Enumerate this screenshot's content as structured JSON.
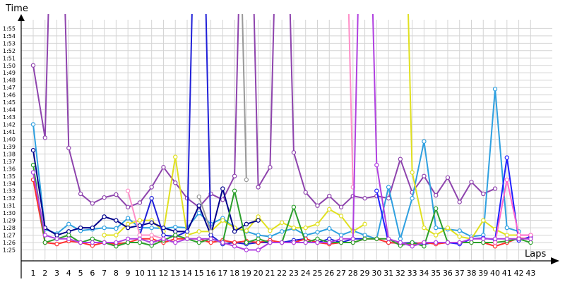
{
  "chart_data": {
    "type": "line",
    "ylabel": "Time",
    "xlabel": "Laps",
    "x_ticks": [
      1,
      2,
      3,
      4,
      5,
      6,
      7,
      8,
      9,
      10,
      11,
      12,
      13,
      14,
      15,
      16,
      17,
      18,
      19,
      20,
      21,
      22,
      23,
      24,
      25,
      26,
      27,
      28,
      29,
      30,
      31,
      32,
      33,
      34,
      35,
      36,
      37,
      38,
      39,
      40,
      41,
      42,
      43
    ],
    "y_ticks": [
      "1:25",
      "1:26",
      "1:27",
      "1:28",
      "1:29",
      "1:30",
      "1:31",
      "1:32",
      "1:33",
      "1:34",
      "1:35",
      "1:36",
      "1:37",
      "1:38",
      "1:39",
      "1:40",
      "1:41",
      "1:42",
      "1:43",
      "1:44",
      "1:45",
      "1:46",
      "1:47",
      "1:48",
      "1:49",
      "1:50",
      "1:51",
      "1:52",
      "1:53",
      "1:54",
      "1:55"
    ],
    "y_range_seconds": [
      84.3,
      117
    ],
    "x_range": [
      0.4,
      43.6
    ],
    "grid": true,
    "legend": "none",
    "series": [
      {
        "color": "#8e44ad",
        "values": [
          110.0,
          100.2,
          160,
          98.8,
          92.6,
          91.3,
          92.1,
          92.5,
          90.8,
          91.4,
          93.5,
          96.2,
          94.1,
          92.0,
          90.8,
          92.6,
          91.8,
          95.0,
          160,
          93.5,
          96.2,
          160,
          98.2,
          92.8,
          91.0,
          92.3,
          90.8,
          92.3,
          92.0,
          92.3,
          92.0,
          97.3,
          92.8,
          95.0,
          92.4,
          94.8,
          91.5,
          94.2,
          92.6,
          93.3,
          null,
          null,
          null
        ]
      },
      {
        "color": "#2fa0e0",
        "values": [
          102.0,
          87.8,
          87.2,
          88.5,
          87.6,
          87.8,
          88.0,
          87.9,
          89.3,
          88.0,
          88.0,
          87.9,
          88.1,
          88.0,
          90.0,
          88.5,
          89.3,
          88.0,
          87.5,
          87.0,
          86.8,
          87.5,
          87.9,
          87.0,
          87.4,
          87.9,
          87.0,
          87.6,
          87.0,
          86.5,
          93.5,
          86.5,
          92.0,
          99.7,
          88.0,
          87.8,
          87.6,
          86.8,
          87.0,
          106.8,
          88.0,
          87.5,
          null
        ]
      },
      {
        "color": "#e0e020",
        "values": [
          null,
          null,
          null,
          null,
          null,
          null,
          87.0,
          87.0,
          88.5,
          89.0,
          89.0,
          87.5,
          97.6,
          87.0,
          87.5,
          87.5,
          89.0,
          88.0,
          87.6,
          89.5,
          87.6,
          88.7,
          88.0,
          88.0,
          88.5,
          90.5,
          89.6,
          87.5,
          88.5,
          null,
          null,
          160,
          95.5,
          88.0,
          87.0,
          88.0,
          86.8,
          86.5,
          89.0,
          87.8,
          87.0,
          87.0,
          87.0
        ]
      },
      {
        "color": "#00008b",
        "values": [
          98.5,
          88.0,
          87.0,
          87.5,
          88.0,
          88.0,
          89.5,
          89.0,
          88.0,
          88.3,
          88.7,
          88.0,
          87.5,
          87.5,
          91.0,
          87.0,
          93.3,
          87.5,
          88.5,
          89.0,
          null,
          null,
          null,
          null,
          null,
          null,
          null,
          null,
          null,
          null,
          null,
          null,
          null,
          null,
          null,
          null,
          null,
          null,
          null,
          null,
          null,
          null,
          null
        ]
      },
      {
        "color": "#2020d8",
        "values": [
          null,
          null,
          null,
          null,
          null,
          null,
          null,
          null,
          null,
          87.0,
          92.0,
          87.0,
          86.8,
          87.5,
          160,
          87.0,
          85.8,
          86.0,
          85.8,
          86.0,
          86.0,
          86.0,
          86.3,
          86.5,
          86.0,
          86.5,
          86.0,
          86.5,
          86.5,
          null,
          null,
          null,
          null,
          null,
          null,
          null,
          null,
          null,
          null,
          null,
          null,
          null,
          null
        ]
      },
      {
        "color": "#1f1fff",
        "values": [
          null,
          null,
          null,
          null,
          null,
          null,
          null,
          null,
          null,
          null,
          null,
          null,
          null,
          null,
          null,
          null,
          null,
          null,
          null,
          null,
          null,
          null,
          null,
          null,
          null,
          null,
          null,
          null,
          null,
          93.0,
          86.0,
          85.9,
          86.0,
          85.8,
          86.0,
          86.0,
          85.8,
          86.5,
          86.6,
          86.4,
          97.5,
          86.3,
          86.8
        ]
      },
      {
        "color": "#ff3030",
        "values": [
          94.5,
          86.0,
          85.8,
          86.2,
          86.0,
          85.6,
          86.0,
          85.8,
          86.0,
          86.5,
          86.5,
          86.0,
          86.5,
          86.5,
          86.5,
          86.0,
          86.3,
          86.0,
          86.2,
          86.0,
          86.3,
          86.0,
          86.0,
          86.5,
          86.0,
          85.8,
          86.0,
          86.0,
          86.5,
          86.5,
          86.0,
          85.9,
          85.8,
          86.0,
          85.8,
          86.0,
          86.0,
          86.0,
          86.0,
          85.5,
          86.0,
          86.6,
          86.5
        ]
      },
      {
        "color": "#2ca02c",
        "values": [
          96.5,
          86.0,
          86.5,
          87.0,
          86.0,
          86.5,
          86.0,
          85.5,
          86.0,
          86.0,
          85.6,
          86.3,
          87.0,
          86.5,
          86.0,
          86.5,
          86.0,
          93.0,
          86.0,
          86.5,
          86.0,
          86.0,
          90.8,
          86.0,
          86.5,
          86.0,
          86.0,
          86.0,
          86.5,
          86.5,
          86.5,
          85.6,
          86.0,
          85.5,
          90.6,
          86.0,
          86.0,
          86.0,
          86.0,
          86.0,
          86.2,
          86.5,
          86.0
        ]
      },
      {
        "color": "#ff8fc8",
        "values": [
          null,
          null,
          null,
          null,
          null,
          null,
          160,
          null,
          93.0,
          87.0,
          87.0,
          86.5,
          86.0,
          null,
          null,
          null,
          null,
          null,
          null,
          null,
          null,
          null,
          null,
          null,
          null,
          null,
          160,
          93.5,
          null,
          null,
          null,
          null,
          null,
          null,
          null,
          null,
          null,
          null,
          null,
          null,
          null,
          null,
          null
        ]
      },
      {
        "color": "#ff66cc",
        "values": [
          null,
          null,
          null,
          null,
          null,
          null,
          null,
          null,
          null,
          null,
          null,
          null,
          null,
          null,
          null,
          null,
          null,
          null,
          null,
          null,
          null,
          null,
          null,
          null,
          null,
          null,
          null,
          null,
          null,
          null,
          null,
          null,
          null,
          null,
          null,
          null,
          null,
          null,
          null,
          86.0,
          94.5,
          87.0,
          87.0
        ]
      },
      {
        "color": "#999999",
        "values": [
          null,
          null,
          null,
          null,
          null,
          null,
          null,
          null,
          null,
          null,
          null,
          null,
          null,
          null,
          92.2,
          87.5,
          null,
          160,
          94.5,
          null,
          null,
          null,
          null,
          null,
          null,
          null,
          null,
          null,
          null,
          null,
          null,
          null,
          null,
          null,
          null,
          null,
          null,
          null,
          null,
          null,
          null,
          null,
          null
        ]
      },
      {
        "color": "#b040e0",
        "values": [
          95.5,
          87.0,
          86.5,
          86.5,
          86.0,
          86.0,
          86.0,
          86.0,
          86.5,
          86.5,
          86.0,
          86.5,
          86.0,
          86.5,
          86.5,
          86.5,
          86.0,
          85.5,
          85.0,
          85.0,
          86.0,
          86.0,
          86.0,
          86.0,
          86.0,
          86.0,
          86.5,
          86.5,
          160,
          96.5,
          86.5,
          86.0,
          85.5,
          86.0,
          86.0,
          86.0,
          86.0,
          86.5,
          86.5,
          86.5,
          86.5,
          86.5,
          86.5
        ]
      }
    ]
  }
}
